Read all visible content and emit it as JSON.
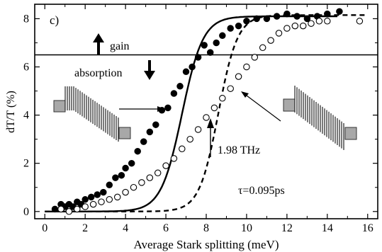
{
  "chart_data": {
    "type": "scatter",
    "panel_label": "c)",
    "xlabel": "Average Stark splitting (meV)",
    "ylabel": "dT/T (%)",
    "xlim": [
      -0.5,
      16.5
    ],
    "ylim": [
      -0.3,
      8.6
    ],
    "x_ticks": [
      0,
      2,
      4,
      6,
      8,
      10,
      12,
      14,
      16
    ],
    "y_ticks": [
      0,
      2,
      4,
      6,
      8
    ],
    "grid": false,
    "threshold_line": {
      "y": 6.5
    },
    "annotations": {
      "gain": "gain",
      "absorption": "absorption",
      "frequency": "1.98 THz",
      "tau": "τ=0.095ps"
    },
    "series": [
      {
        "marker": "filled-circle",
        "fit": "solid",
        "x": [
          0.5,
          0.8,
          1.0,
          1.2,
          1.4,
          1.6,
          1.8,
          2.0,
          2.3,
          2.6,
          2.9,
          3.2,
          3.5,
          3.8,
          4.0,
          4.3,
          4.6,
          4.9,
          5.2,
          5.5,
          5.8,
          6.1,
          6.4,
          6.7,
          7.0,
          7.3,
          7.6,
          7.9,
          8.2,
          8.5,
          8.8,
          9.2,
          9.6,
          10.0,
          10.5,
          11.0,
          11.5,
          12.0,
          12.5,
          13.0,
          13.5,
          14.0,
          14.6
        ],
        "y": [
          0.1,
          0.3,
          0.2,
          0.3,
          0.2,
          0.4,
          0.3,
          0.5,
          0.6,
          0.7,
          0.8,
          1.1,
          1.4,
          1.5,
          1.8,
          2.0,
          2.5,
          2.9,
          3.3,
          3.6,
          4.2,
          4.3,
          4.9,
          5.2,
          5.8,
          6.0,
          6.4,
          6.9,
          6.6,
          7.0,
          7.3,
          7.6,
          7.7,
          7.9,
          8.0,
          8.0,
          8.1,
          8.2,
          8.1,
          8.0,
          8.1,
          8.2,
          8.3
        ]
      },
      {
        "marker": "open-circle",
        "fit": "dashed",
        "x": [
          0.8,
          1.2,
          1.6,
          2.0,
          2.4,
          2.8,
          3.2,
          3.6,
          4.0,
          4.4,
          4.8,
          5.2,
          5.6,
          6.0,
          6.4,
          6.8,
          7.2,
          7.6,
          8.0,
          8.4,
          8.8,
          9.2,
          9.6,
          10.0,
          10.4,
          10.8,
          11.2,
          11.6,
          12.0,
          12.4,
          12.8,
          13.2,
          13.6,
          14.0,
          15.6
        ],
        "y": [
          0.1,
          0.0,
          0.1,
          0.2,
          0.3,
          0.4,
          0.5,
          0.6,
          0.8,
          1.0,
          1.2,
          1.4,
          1.6,
          1.9,
          2.2,
          2.6,
          3.0,
          3.4,
          3.9,
          4.3,
          4.7,
          5.1,
          5.6,
          6.0,
          6.4,
          6.8,
          7.1,
          7.4,
          7.6,
          7.7,
          7.7,
          7.8,
          7.9,
          7.9,
          7.9
        ]
      }
    ]
  }
}
